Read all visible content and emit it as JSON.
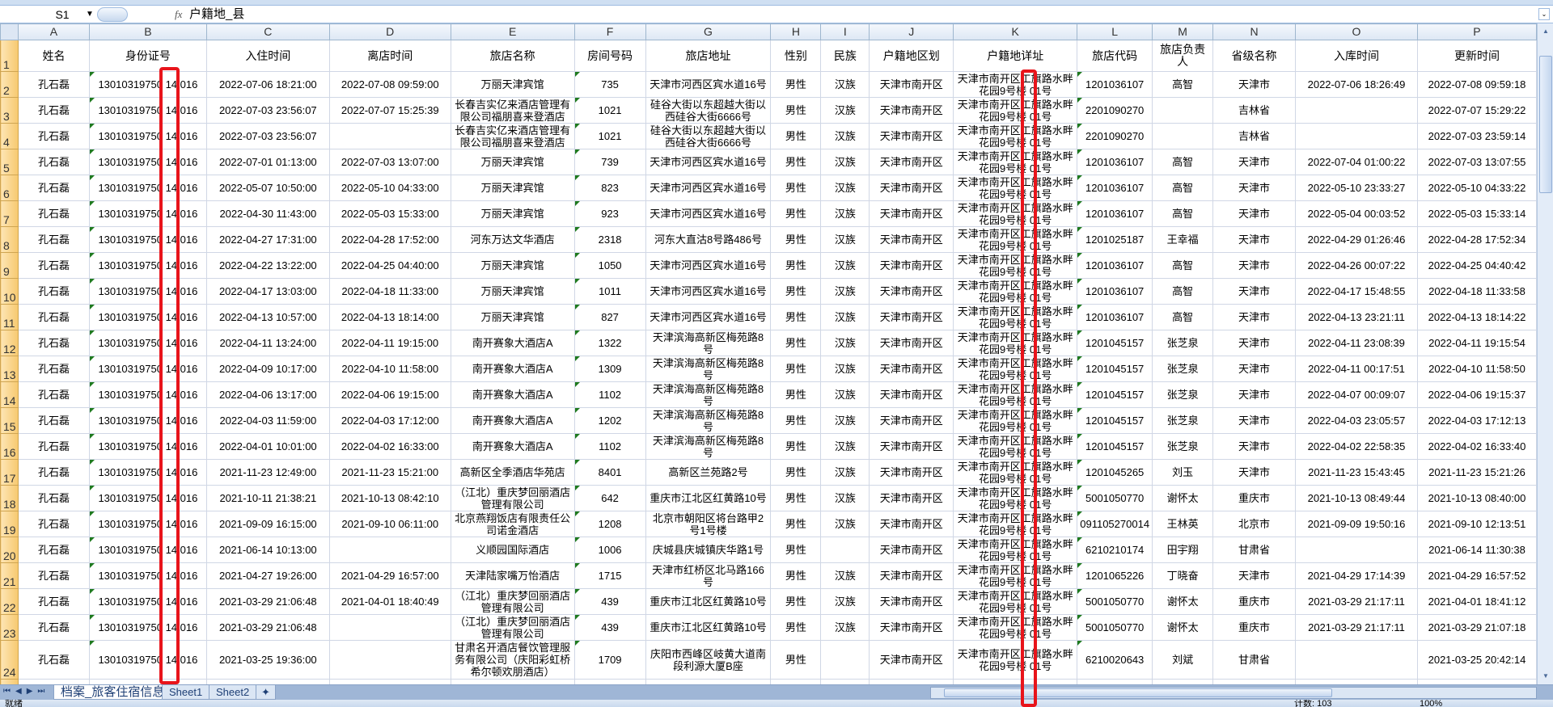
{
  "formula_bar": {
    "name_box": "S1",
    "fx_label": "fx",
    "formula": "户籍地_县"
  },
  "column_letters": [
    "A",
    "B",
    "C",
    "D",
    "E",
    "F",
    "G",
    "H",
    "I",
    "J",
    "K",
    "L",
    "M",
    "N",
    "O",
    "P"
  ],
  "headers": [
    "姓名",
    "身份证号",
    "入住时间",
    "离店时间",
    "旅店名称",
    "房间号码",
    "旅店地址",
    "性别",
    "民族",
    "户籍地区划",
    "户籍地详址",
    "旅店代码",
    "旅店负责人",
    "省级名称",
    "入库时间",
    "更新时间"
  ],
  "row_numbers": [
    "1",
    "2",
    "3",
    "4",
    "5",
    "6",
    "7",
    "8",
    "9",
    "10",
    "11",
    "12",
    "13",
    "14",
    "15",
    "16",
    "17",
    "18",
    "19",
    "20",
    "21",
    "22",
    "23",
    "24"
  ],
  "rows": [
    [
      "孔石磊",
      "13010319750 14 016",
      "2022-07-06 18:21:00",
      "2022-07-08 09:59:00",
      "万丽天津宾馆",
      "735",
      "天津市河西区宾水道16号",
      "男性",
      "汉族",
      "天津市南开区",
      "天津市南开区工旗路水畔花园9号楼 01号",
      "1201036107",
      "高智",
      "天津市",
      "2022-07-06 18:26:49",
      "2022-07-08 09:59:18"
    ],
    [
      "孔石磊",
      "13010319750 14 016",
      "2022-07-03 23:56:07",
      "2022-07-07 15:25:39",
      "长春吉实亿来酒店管理有限公司福朋喜来登酒店",
      "1021",
      "硅谷大街以东超越大街以西硅谷大街6666号",
      "男性",
      "汉族",
      "天津市南开区",
      "天津市南开区工旗路水畔花园9号楼 01号",
      "2201090270",
      "",
      "吉林省",
      "",
      "2022-07-07 15:29:22"
    ],
    [
      "孔石磊",
      "13010319750 14 016",
      "2022-07-03 23:56:07",
      "",
      "长春吉实亿来酒店管理有限公司福朋喜来登酒店",
      "1021",
      "硅谷大街以东超越大街以西硅谷大街6666号",
      "男性",
      "汉族",
      "天津市南开区",
      "天津市南开区工旗路水畔花园9号楼 01号",
      "2201090270",
      "",
      "吉林省",
      "",
      "2022-07-03 23:59:14"
    ],
    [
      "孔石磊",
      "13010319750 14 016",
      "2022-07-01 01:13:00",
      "2022-07-03 13:07:00",
      "万丽天津宾馆",
      "739",
      "天津市河西区宾水道16号",
      "男性",
      "汉族",
      "天津市南开区",
      "天津市南开区工旗路水畔花园9号楼 01号",
      "1201036107",
      "高智",
      "天津市",
      "2022-07-04 01:00:22",
      "2022-07-03 13:07:55"
    ],
    [
      "孔石磊",
      "13010319750 14 016",
      "2022-05-07 10:50:00",
      "2022-05-10 04:33:00",
      "万丽天津宾馆",
      "823",
      "天津市河西区宾水道16号",
      "男性",
      "汉族",
      "天津市南开区",
      "天津市南开区工旗路水畔花园9号楼 01号",
      "1201036107",
      "高智",
      "天津市",
      "2022-05-10 23:33:27",
      "2022-05-10 04:33:22"
    ],
    [
      "孔石磊",
      "13010319750 14 016",
      "2022-04-30 11:43:00",
      "2022-05-03 15:33:00",
      "万丽天津宾馆",
      "923",
      "天津市河西区宾水道16号",
      "男性",
      "汉族",
      "天津市南开区",
      "天津市南开区工旗路水畔花园9号楼 01号",
      "1201036107",
      "高智",
      "天津市",
      "2022-05-04 00:03:52",
      "2022-05-03 15:33:14"
    ],
    [
      "孔石磊",
      "13010319750 14 016",
      "2022-04-27 17:31:00",
      "2022-04-28 17:52:00",
      "河东万达文华酒店",
      "2318",
      "河东大直沽8号路486号",
      "男性",
      "汉族",
      "天津市南开区",
      "天津市南开区工旗路水畔花园9号楼 01号",
      "1201025187",
      "王幸福",
      "天津市",
      "2022-04-29 01:26:46",
      "2022-04-28 17:52:34"
    ],
    [
      "孔石磊",
      "13010319750 14 016",
      "2022-04-22 13:22:00",
      "2022-04-25 04:40:00",
      "万丽天津宾馆",
      "1050",
      "天津市河西区宾水道16号",
      "男性",
      "汉族",
      "天津市南开区",
      "天津市南开区工旗路水畔花园9号楼 01号",
      "1201036107",
      "高智",
      "天津市",
      "2022-04-26 00:07:22",
      "2022-04-25 04:40:42"
    ],
    [
      "孔石磊",
      "13010319750 14 016",
      "2022-04-17 13:03:00",
      "2022-04-18 11:33:00",
      "万丽天津宾馆",
      "1011",
      "天津市河西区宾水道16号",
      "男性",
      "汉族",
      "天津市南开区",
      "天津市南开区工旗路水畔花园9号楼 01号",
      "1201036107",
      "高智",
      "天津市",
      "2022-04-17 15:48:55",
      "2022-04-18 11:33:58"
    ],
    [
      "孔石磊",
      "13010319750 14 016",
      "2022-04-13 10:57:00",
      "2022-04-13 18:14:00",
      "万丽天津宾馆",
      "827",
      "天津市河西区宾水道16号",
      "男性",
      "汉族",
      "天津市南开区",
      "天津市南开区工旗路水畔花园9号楼 01号",
      "1201036107",
      "高智",
      "天津市",
      "2022-04-13 23:21:11",
      "2022-04-13 18:14:22"
    ],
    [
      "孔石磊",
      "13010319750 14 016",
      "2022-04-11 13:24:00",
      "2022-04-11 19:15:00",
      "南开赛象大酒店A",
      "1322",
      "天津滨海高新区梅苑路8号",
      "男性",
      "汉族",
      "天津市南开区",
      "天津市南开区工旗路水畔花园9号楼 01号",
      "1201045157",
      "张芝泉",
      "天津市",
      "2022-04-11 23:08:39",
      "2022-04-11 19:15:54"
    ],
    [
      "孔石磊",
      "13010319750 14 016",
      "2022-04-09 10:17:00",
      "2022-04-10 11:58:00",
      "南开赛象大酒店A",
      "1309",
      "天津滨海高新区梅苑路8号",
      "男性",
      "汉族",
      "天津市南开区",
      "天津市南开区工旗路水畔花园9号楼 01号",
      "1201045157",
      "张芝泉",
      "天津市",
      "2022-04-11 00:17:51",
      "2022-04-10 11:58:50"
    ],
    [
      "孔石磊",
      "13010319750 14 016",
      "2022-04-06 13:17:00",
      "2022-04-06 19:15:00",
      "南开赛象大酒店A",
      "1102",
      "天津滨海高新区梅苑路8号",
      "男性",
      "汉族",
      "天津市南开区",
      "天津市南开区工旗路水畔花园9号楼 01号",
      "1201045157",
      "张芝泉",
      "天津市",
      "2022-04-07 00:09:07",
      "2022-04-06 19:15:37"
    ],
    [
      "孔石磊",
      "13010319750 14 016",
      "2022-04-03 11:59:00",
      "2022-04-03 17:12:00",
      "南开赛象大酒店A",
      "1202",
      "天津滨海高新区梅苑路8号",
      "男性",
      "汉族",
      "天津市南开区",
      "天津市南开区工旗路水畔花园9号楼 01号",
      "1201045157",
      "张芝泉",
      "天津市",
      "2022-04-03 23:05:57",
      "2022-04-03 17:12:13"
    ],
    [
      "孔石磊",
      "13010319750 14 016",
      "2022-04-01 10:01:00",
      "2022-04-02 16:33:00",
      "南开赛象大酒店A",
      "1102",
      "天津滨海高新区梅苑路8号",
      "男性",
      "汉族",
      "天津市南开区",
      "天津市南开区工旗路水畔花园9号楼 01号",
      "1201045157",
      "张芝泉",
      "天津市",
      "2022-04-02 22:58:35",
      "2022-04-02 16:33:40"
    ],
    [
      "孔石磊",
      "13010319750 14 016",
      "2021-11-23 12:49:00",
      "2021-11-23 15:21:00",
      "高新区全季酒店华苑店",
      "8401",
      "高新区兰苑路2号",
      "男性",
      "汉族",
      "天津市南开区",
      "天津市南开区工旗路水畔花园9号楼 01号",
      "1201045265",
      "刘玉",
      "天津市",
      "2021-11-23 15:43:45",
      "2021-11-23 15:21:26"
    ],
    [
      "孔石磊",
      "13010319750 14 016",
      "2021-10-11 21:38:21",
      "2021-10-13 08:42:10",
      "（江北）重庆梦回丽酒店管理有限公司",
      "642",
      "重庆市江北区红黄路10号",
      "男性",
      "汉族",
      "天津市南开区",
      "天津市南开区工旗路水畔花园9号楼 01号",
      "5001050770",
      "谢怀太",
      "重庆市",
      "2021-10-13 08:49:44",
      "2021-10-13 08:40:00"
    ],
    [
      "孔石磊",
      "13010319750 14 016",
      "2021-09-09 16:15:00",
      "2021-09-10 06:11:00",
      "北京燕翔饭店有限责任公司诺金酒店",
      "1208",
      "北京市朝阳区将台路甲2号1号楼",
      "男性",
      "汉族",
      "天津市南开区",
      "天津市南开区工旗路水畔花园9号楼 01号",
      "091105270014",
      "王林英",
      "北京市",
      "2021-09-09 19:50:16",
      "2021-09-10 12:13:51"
    ],
    [
      "孔石磊",
      "13010319750 14 016",
      "2021-06-14 10:13:00",
      "",
      "义顺园国际酒店",
      "1006",
      "庆城县庆城镇庆华路1号",
      "男性",
      "",
      "天津市南开区",
      "天津市南开区工旗路水畔花园9号楼 01号",
      "6210210174",
      "田宇翔",
      "甘肃省",
      "",
      "2021-06-14 11:30:38"
    ],
    [
      "孔石磊",
      "13010319750 14 016",
      "2021-04-27 19:26:00",
      "2021-04-29 16:57:00",
      "天津陆家嘴万怡酒店",
      "1715",
      "天津市红桥区北马路166号",
      "男性",
      "汉族",
      "天津市南开区",
      "天津市南开区工旗路水畔花园9号楼 01号",
      "1201065226",
      "丁晓奋",
      "天津市",
      "2021-04-29 17:14:39",
      "2021-04-29 16:57:52"
    ],
    [
      "孔石磊",
      "13010319750 14 016",
      "2021-03-29 21:06:48",
      "2021-04-01 18:40:49",
      "（江北）重庆梦回丽酒店管理有限公司",
      "439",
      "重庆市江北区红黄路10号",
      "男性",
      "汉族",
      "天津市南开区",
      "天津市南开区工旗路水畔花园9号楼 01号",
      "5001050770",
      "谢怀太",
      "重庆市",
      "2021-03-29 21:17:11",
      "2021-04-01 18:41:12"
    ],
    [
      "孔石磊",
      "13010319750 14 016",
      "2021-03-29 21:06:48",
      "",
      "（江北）重庆梦回丽酒店管理有限公司",
      "439",
      "重庆市江北区红黄路10号",
      "男性",
      "汉族",
      "天津市南开区",
      "天津市南开区工旗路水畔花园9号楼 01号",
      "5001050770",
      "谢怀太",
      "重庆市",
      "2021-03-29 21:17:11",
      "2021-03-29 21:07:18"
    ],
    [
      "孔石磊",
      "13010319750 14 016",
      "2021-03-25 19:36:00",
      "",
      "甘肃名开酒店餐饮管理服务有限公司（庆阳彩虹桥希尔顿欢朋酒店）",
      "1709",
      "庆阳市西峰区岐黄大道南段利源大厦B座",
      "男性",
      "",
      "天津市南开区",
      "天津市南开区工旗路水畔花园9号楼 01号",
      "6210020643",
      "刘斌",
      "甘肃省",
      "",
      "2021-03-25 20:42:14"
    ]
  ],
  "sheet_tabs": {
    "active": "档案_旅客住宿信息",
    "tabs": [
      "Sheet1",
      "Sheet2"
    ]
  },
  "status_bar": {
    "ready": "就绪",
    "count": "计数: 103",
    "zoom": "100%"
  },
  "colors": {
    "highlight_box": "#e8141b",
    "grid": "#d0d7e5",
    "row_header": "#f7c96f",
    "col_header": "#dde7f4"
  }
}
